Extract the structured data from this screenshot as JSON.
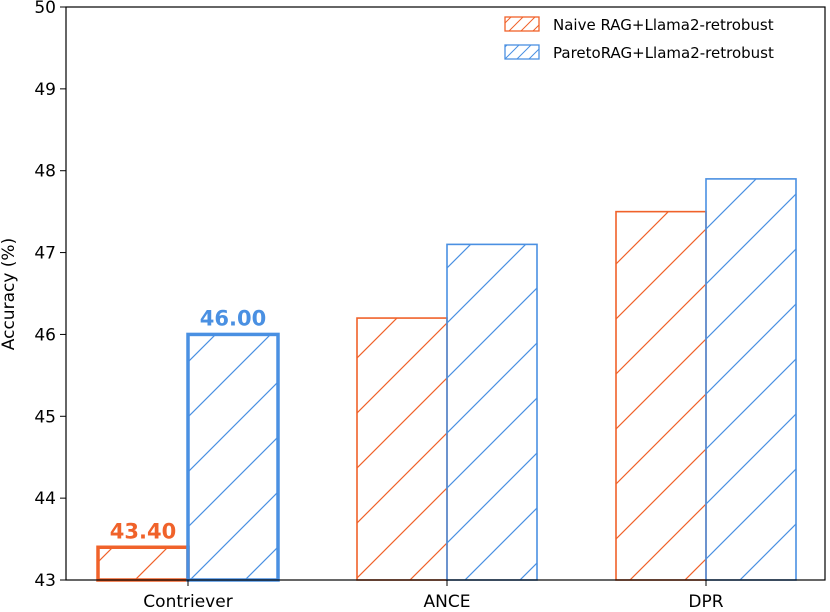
{
  "chart_data": {
    "type": "bar",
    "title": "",
    "xlabel": "",
    "ylabel": "Accuracy (%)",
    "ylim": [
      43,
      50
    ],
    "yticks": [
      43,
      44,
      45,
      46,
      47,
      48,
      49,
      50
    ],
    "categories": [
      "Contriever",
      "ANCE",
      "DPR"
    ],
    "series": [
      {
        "name": "Naive RAG+Llama2-retrobust",
        "color": "#f0622a",
        "values": [
          43.4,
          46.2,
          47.5
        ]
      },
      {
        "name": "ParetoRAG+Llama2-retrobust",
        "color": "#4a90e2",
        "values": [
          46.0,
          47.1,
          47.9
        ]
      }
    ],
    "highlight_category": "Contriever",
    "data_labels": {
      "Contriever": [
        "43.40",
        "46.00"
      ]
    },
    "legend_position": "top-right",
    "grid": false,
    "hatch": "diagonal"
  }
}
